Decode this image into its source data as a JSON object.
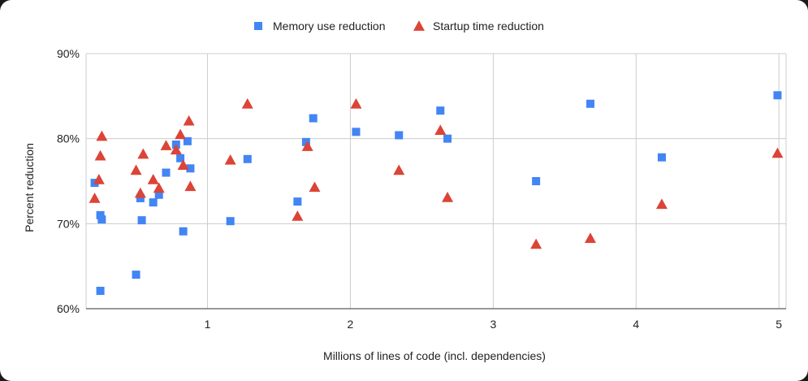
{
  "chart_data": {
    "type": "scatter",
    "title": "",
    "xlabel": "Millions of lines of code (incl. dependencies)",
    "ylabel": "Percent reduction",
    "xlim": [
      0.15,
      5.05
    ],
    "ylim": [
      60,
      90
    ],
    "x_ticks": [
      1,
      2,
      3,
      4,
      5
    ],
    "x_tick_labels": [
      "1",
      "2",
      "3",
      "4",
      "5"
    ],
    "y_ticks": [
      60,
      70,
      80,
      90
    ],
    "y_tick_labels": [
      "60%",
      "70%",
      "80%",
      "90%"
    ],
    "grid": true,
    "legend_position": "top-center",
    "series": [
      {
        "name": "Memory use reduction",
        "marker": "square",
        "color": "#4285f4",
        "points": [
          [
            0.21,
            74.8
          ],
          [
            0.25,
            71.0
          ],
          [
            0.26,
            70.5
          ],
          [
            0.25,
            62.1
          ],
          [
            0.5,
            64.0
          ],
          [
            0.53,
            73.0
          ],
          [
            0.54,
            70.4
          ],
          [
            0.62,
            72.5
          ],
          [
            0.66,
            73.4
          ],
          [
            0.71,
            76.0
          ],
          [
            0.78,
            79.3
          ],
          [
            0.81,
            77.7
          ],
          [
            0.83,
            69.1
          ],
          [
            0.86,
            79.7
          ],
          [
            0.88,
            76.5
          ],
          [
            1.16,
            70.3
          ],
          [
            1.28,
            77.6
          ],
          [
            1.63,
            72.6
          ],
          [
            1.69,
            79.6
          ],
          [
            1.74,
            82.4
          ],
          [
            2.04,
            80.8
          ],
          [
            2.34,
            80.4
          ],
          [
            2.63,
            83.3
          ],
          [
            2.68,
            80.0
          ],
          [
            3.3,
            75.0
          ],
          [
            3.68,
            84.1
          ],
          [
            4.18,
            77.8
          ],
          [
            4.99,
            85.1
          ]
        ]
      },
      {
        "name": "Startup time reduction",
        "marker": "triangle",
        "color": "#db4437",
        "points": [
          [
            0.21,
            73.0
          ],
          [
            0.24,
            75.2
          ],
          [
            0.25,
            78.0
          ],
          [
            0.26,
            80.3
          ],
          [
            0.5,
            76.3
          ],
          [
            0.53,
            73.6
          ],
          [
            0.55,
            78.2
          ],
          [
            0.62,
            75.2
          ],
          [
            0.66,
            74.2
          ],
          [
            0.71,
            79.2
          ],
          [
            0.78,
            78.7
          ],
          [
            0.81,
            80.5
          ],
          [
            0.83,
            76.9
          ],
          [
            0.87,
            82.1
          ],
          [
            0.88,
            74.4
          ],
          [
            1.16,
            77.5
          ],
          [
            1.28,
            84.1
          ],
          [
            1.63,
            70.9
          ],
          [
            1.7,
            79.1
          ],
          [
            1.75,
            74.3
          ],
          [
            2.04,
            84.1
          ],
          [
            2.34,
            76.3
          ],
          [
            2.63,
            81.0
          ],
          [
            2.68,
            73.1
          ],
          [
            3.3,
            67.6
          ],
          [
            3.68,
            68.3
          ],
          [
            4.18,
            72.3
          ],
          [
            4.99,
            78.3
          ]
        ]
      }
    ]
  }
}
